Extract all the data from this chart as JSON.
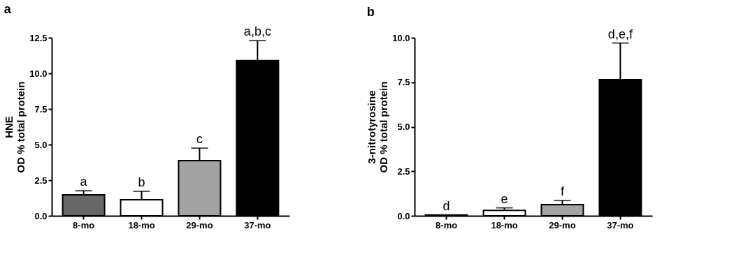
{
  "chart_data": [
    {
      "type": "bar",
      "title": "a",
      "ylabel": "HNE\nOD % total protein",
      "categories": [
        "8-mo",
        "18-mo",
        "29-mo",
        "37-mo"
      ],
      "values": [
        1.47,
        1.13,
        3.87,
        10.9
      ],
      "colors": [
        "#666666",
        "#ffffff",
        "#a3a3a3",
        "#000000"
      ],
      "errors": [
        [
          1.47,
          1.76
        ],
        [
          1.13,
          1.72
        ],
        [
          3.87,
          4.75
        ],
        [
          10.9,
          12.3
        ]
      ],
      "ylim": [
        0,
        12.5
      ],
      "yticks": [
        {
          "value": 0,
          "label": "0.0"
        },
        {
          "value": 2.5,
          "label": "2.5"
        },
        {
          "value": 5,
          "label": "5.0"
        },
        {
          "value": 7.5,
          "label": "7.5"
        },
        {
          "value": 10,
          "label": "10.0"
        },
        {
          "value": 12.5,
          "label": "12.5"
        }
      ],
      "grid": false,
      "annotations": [
        {
          "text": "a",
          "x": "8-mo",
          "y": 1.76
        },
        {
          "text": "b",
          "x": "18-mo",
          "y": 1.72
        },
        {
          "text": "c",
          "x": "29-mo",
          "y": 4.75
        },
        {
          "text": "a,b,c",
          "x": "37-mo",
          "y": 12.3
        }
      ]
    },
    {
      "type": "bar",
      "title": "b",
      "ylabel": "3-nitrotyrosine\nOD % total protein",
      "categories": [
        "8-mo",
        "18-mo",
        "29-mo",
        "37-mo"
      ],
      "values": [
        0.05,
        0.3,
        0.63,
        7.65
      ],
      "colors": [
        "#666666",
        "#ffffff",
        "#a3a3a3",
        "#000000"
      ],
      "errors": [
        null,
        [
          0.3,
          0.45
        ],
        [
          0.63,
          0.86
        ],
        [
          7.65,
          9.7
        ]
      ],
      "ylim": [
        0,
        10
      ],
      "yticks": [
        {
          "value": 0,
          "label": "0.0"
        },
        {
          "value": 2.5,
          "label": "2.5"
        },
        {
          "value": 5,
          "label": "5.0"
        },
        {
          "value": 7.5,
          "label": "7.5"
        },
        {
          "value": 10,
          "label": "10.0"
        }
      ],
      "grid": false,
      "annotations": [
        {
          "text": "d",
          "x": "8-mo",
          "y": 0.05
        },
        {
          "text": "e",
          "x": "18-mo",
          "y": 0.45
        },
        {
          "text": "f",
          "x": "29-mo",
          "y": 0.86
        },
        {
          "text": "d,e,f",
          "x": "37-mo",
          "y": 9.7
        }
      ]
    }
  ]
}
